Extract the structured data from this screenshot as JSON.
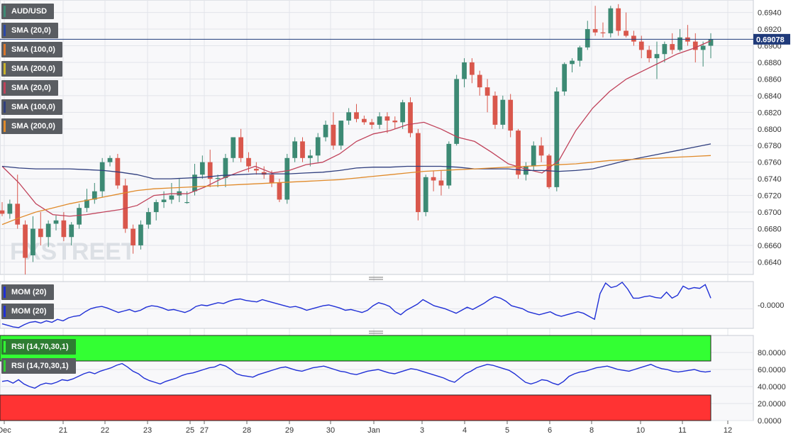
{
  "chart_data": {
    "type": "candlestick",
    "symbol": "AUD/USD",
    "watermark": "FXSTREET",
    "last_price": "0.69078",
    "colors": {
      "up": "#3d8a74",
      "down": "#d9574c",
      "background": "#f8f8fa",
      "grid": "#e2e4ea"
    },
    "price_axis": {
      "ylim": [
        0.6625,
        0.6955
      ],
      "ticks": [
        "0.6940",
        "0.6920",
        "0.6900",
        "0.6880",
        "0.6860",
        "0.6840",
        "0.6820",
        "0.6800",
        "0.6780",
        "0.6760",
        "0.6740",
        "0.6720",
        "0.6700",
        "0.6680",
        "0.6660",
        "0.6640"
      ]
    },
    "x_labels": [
      "Dec",
      "21",
      "22",
      "23",
      "25",
      "27",
      "28",
      "29",
      "30",
      "Jan",
      "3",
      "4",
      "5",
      "6",
      "8",
      "10",
      "11",
      "12"
    ],
    "legends": [
      {
        "label": "AUD/USD",
        "color": "#3d8a74"
      },
      {
        "label": "SMA (20,0)",
        "color": "#2a47a8"
      },
      {
        "label": "SMA (100,0)",
        "color": "#d9762b"
      },
      {
        "label": "SMA (200,0)",
        "color": "#c9b22a"
      },
      {
        "label": "SMA (20,0)",
        "color": "#c0425a"
      },
      {
        "label": "SMA (100,0)",
        "color": "#2f3e7e"
      },
      {
        "label": "SMA (200,0)",
        "color": "#e08a2a"
      }
    ],
    "series": [
      {
        "name": "SMA (20,0)",
        "color": "#c0425a",
        "points": [
          [
            0.6755
          ],
          [
            0.6735
          ],
          [
            0.671
          ],
          [
            0.6697
          ],
          [
            0.6695
          ],
          [
            0.6697
          ],
          [
            0.67
          ],
          [
            0.6703
          ],
          [
            0.6708
          ],
          [
            0.672
          ],
          [
            0.6722
          ],
          [
            0.6722
          ],
          [
            0.673
          ],
          [
            0.674
          ],
          [
            0.6748
          ],
          [
            0.6755
          ],
          [
            0.6747
          ],
          [
            0.675
          ],
          [
            0.6757
          ],
          [
            0.676
          ],
          [
            0.677
          ],
          [
            0.6785
          ],
          [
            0.6794
          ],
          [
            0.6798
          ],
          [
            0.6805
          ],
          [
            0.6808
          ],
          [
            0.68
          ],
          [
            0.679
          ],
          [
            0.6785
          ],
          [
            0.6772
          ],
          [
            0.6758
          ],
          [
            0.6752
          ],
          [
            0.6747
          ],
          [
            0.6762
          ],
          [
            0.6798
          ],
          [
            0.6825
          ],
          [
            0.6845
          ],
          [
            0.686
          ],
          [
            0.687
          ],
          [
            0.688
          ],
          [
            0.689
          ],
          [
            0.6897
          ],
          [
            0.6906
          ]
        ]
      },
      {
        "name": "SMA (100,0)",
        "color": "#2f3e7e",
        "points": [
          [
            0.6755
          ],
          [
            0.6753
          ],
          [
            0.6752
          ],
          [
            0.6752
          ],
          [
            0.6752
          ],
          [
            0.6751
          ],
          [
            0.675
          ],
          [
            0.6748
          ],
          [
            0.6745
          ],
          [
            0.674
          ],
          [
            0.674
          ],
          [
            0.6741
          ],
          [
            0.6742
          ],
          [
            0.6744
          ],
          [
            0.6745
          ],
          [
            0.6746
          ],
          [
            0.6746
          ],
          [
            0.6746
          ],
          [
            0.6747
          ],
          [
            0.6748
          ],
          [
            0.675
          ],
          [
            0.6753
          ],
          [
            0.6754
          ],
          [
            0.6754
          ],
          [
            0.6755
          ],
          [
            0.6755
          ],
          [
            0.6755
          ],
          [
            0.6754
          ],
          [
            0.6752
          ],
          [
            0.6752
          ],
          [
            0.6752
          ],
          [
            0.675
          ],
          [
            0.675
          ],
          [
            0.6749
          ],
          [
            0.675
          ],
          [
            0.6752
          ],
          [
            0.6757
          ],
          [
            0.6762
          ],
          [
            0.6766
          ],
          [
            0.677
          ],
          [
            0.6774
          ],
          [
            0.6778
          ],
          [
            0.6782
          ]
        ]
      },
      {
        "name": "SMA (200,0)",
        "color": "#e08a2a",
        "points": [
          [
            0.6685
          ],
          [
            0.6693
          ],
          [
            0.67
          ],
          [
            0.6705
          ],
          [
            0.671
          ],
          [
            0.6714
          ],
          [
            0.6718
          ],
          [
            0.6722
          ],
          [
            0.6726
          ],
          [
            0.6728
          ],
          [
            0.6729
          ],
          [
            0.673
          ],
          [
            0.6731
          ],
          [
            0.6732
          ],
          [
            0.6733
          ],
          [
            0.6734
          ],
          [
            0.6735
          ],
          [
            0.6736
          ],
          [
            0.6737
          ],
          [
            0.6738
          ],
          [
            0.6739
          ],
          [
            0.6741
          ],
          [
            0.6743
          ],
          [
            0.6745
          ],
          [
            0.6747
          ],
          [
            0.6749
          ],
          [
            0.675
          ],
          [
            0.6751
          ],
          [
            0.6752
          ],
          [
            0.6753
          ],
          [
            0.6754
          ],
          [
            0.6755
          ],
          [
            0.6756
          ],
          [
            0.6757
          ],
          [
            0.6758
          ],
          [
            0.676
          ],
          [
            0.6762
          ],
          [
            0.6763
          ],
          [
            0.6764
          ],
          [
            0.6765
          ],
          [
            0.6766
          ],
          [
            0.6767
          ],
          [
            0.6768
          ]
        ]
      }
    ],
    "candles": [
      [
        0.6702,
        0.6712,
        0.6695,
        0.6698
      ],
      [
        0.6698,
        0.6715,
        0.6692,
        0.671
      ],
      [
        0.671,
        0.6745,
        0.668,
        0.6685
      ],
      [
        0.6685,
        0.669,
        0.6625,
        0.6645
      ],
      [
        0.6648,
        0.6695,
        0.664,
        0.668
      ],
      [
        0.668,
        0.67,
        0.666,
        0.667
      ],
      [
        0.667,
        0.669,
        0.6658,
        0.6686
      ],
      [
        0.6686,
        0.6696,
        0.6678,
        0.669
      ],
      [
        0.669,
        0.67,
        0.6665,
        0.667
      ],
      [
        0.667,
        0.6688,
        0.666,
        0.6685
      ],
      [
        0.6685,
        0.671,
        0.668,
        0.6705
      ],
      [
        0.6705,
        0.6728,
        0.67,
        0.6715
      ],
      [
        0.6715,
        0.6735,
        0.671,
        0.6725
      ],
      [
        0.6725,
        0.6765,
        0.6718,
        0.676
      ],
      [
        0.676,
        0.6768,
        0.6755,
        0.6765
      ],
      [
        0.6765,
        0.677,
        0.6728,
        0.6732
      ],
      [
        0.6732,
        0.674,
        0.6675,
        0.668
      ],
      [
        0.668,
        0.6685,
        0.665,
        0.666
      ],
      [
        0.666,
        0.669,
        0.6655,
        0.6685
      ],
      [
        0.6685,
        0.6705,
        0.668,
        0.67
      ],
      [
        0.67,
        0.6715,
        0.669,
        0.6712
      ],
      [
        0.6712,
        0.6725,
        0.6705,
        0.6715
      ],
      [
        0.6715,
        0.6735,
        0.671,
        0.672
      ],
      [
        0.672,
        0.674,
        0.6712,
        0.6725
      ],
      [
        0.6712,
        0.6725,
        0.671,
        0.6712
      ],
      [
        0.6725,
        0.6758,
        0.672,
        0.6745
      ],
      [
        0.6745,
        0.6768,
        0.674,
        0.676
      ],
      [
        0.676,
        0.6775,
        0.673,
        0.674
      ],
      [
        0.674,
        0.6745,
        0.673,
        0.6741
      ],
      [
        0.6741,
        0.677,
        0.673,
        0.6765
      ],
      [
        0.6765,
        0.679,
        0.676,
        0.679
      ],
      [
        0.679,
        0.68,
        0.676,
        0.6765
      ],
      [
        0.6765,
        0.6772,
        0.6748,
        0.6755
      ],
      [
        0.6752,
        0.676,
        0.6745,
        0.675
      ],
      [
        0.6748,
        0.6755,
        0.674,
        0.6745
      ],
      [
        0.6745,
        0.675,
        0.673,
        0.6735
      ],
      [
        0.6735,
        0.674,
        0.6712,
        0.6715
      ],
      [
        0.6715,
        0.677,
        0.671,
        0.6765
      ],
      [
        0.6765,
        0.679,
        0.676,
        0.6785
      ],
      [
        0.6785,
        0.679,
        0.676,
        0.6765
      ],
      [
        0.6765,
        0.6775,
        0.6755,
        0.6768
      ],
      [
        0.6768,
        0.6795,
        0.676,
        0.679
      ],
      [
        0.679,
        0.681,
        0.6785,
        0.6805
      ],
      [
        0.6805,
        0.682,
        0.6775,
        0.678
      ],
      [
        0.678,
        0.681,
        0.6775,
        0.681
      ],
      [
        0.681,
        0.6825,
        0.6805,
        0.682
      ],
      [
        0.682,
        0.683,
        0.6808,
        0.6812
      ],
      [
        0.6812,
        0.6816,
        0.6805,
        0.6808
      ],
      [
        0.6808,
        0.6812,
        0.68,
        0.6805
      ],
      [
        0.6805,
        0.682,
        0.68,
        0.6815
      ],
      [
        0.6815,
        0.682,
        0.6795,
        0.681
      ],
      [
        0.681,
        0.6815,
        0.68,
        0.6808
      ],
      [
        0.6808,
        0.6835,
        0.68,
        0.6832
      ],
      [
        0.6832,
        0.6838,
        0.679,
        0.6795
      ],
      [
        0.6795,
        0.68,
        0.669,
        0.67
      ],
      [
        0.67,
        0.6745,
        0.6695,
        0.6742
      ],
      [
        0.6742,
        0.675,
        0.6725,
        0.6738
      ],
      [
        0.6738,
        0.675,
        0.672,
        0.6732
      ],
      [
        0.6732,
        0.6785,
        0.6728,
        0.6782
      ],
      [
        0.6782,
        0.6865,
        0.678,
        0.686
      ],
      [
        0.686,
        0.6885,
        0.685,
        0.688
      ],
      [
        0.688,
        0.6885,
        0.6855,
        0.6865
      ],
      [
        0.6865,
        0.687,
        0.684,
        0.685
      ],
      [
        0.685,
        0.686,
        0.682,
        0.684
      ],
      [
        0.684,
        0.6845,
        0.68,
        0.6805
      ],
      [
        0.6805,
        0.684,
        0.68,
        0.6835
      ],
      [
        0.6835,
        0.6842,
        0.679,
        0.6798
      ],
      [
        0.6798,
        0.68,
        0.674,
        0.6745
      ],
      [
        0.6745,
        0.676,
        0.6738,
        0.6755
      ],
      [
        0.6755,
        0.6785,
        0.675,
        0.678
      ],
      [
        0.678,
        0.679,
        0.676,
        0.6768
      ],
      [
        0.6768,
        0.677,
        0.6728,
        0.673
      ],
      [
        0.673,
        0.685,
        0.6725,
        0.6845
      ],
      [
        0.6845,
        0.688,
        0.684,
        0.6878
      ],
      [
        0.6878,
        0.6885,
        0.6868,
        0.6882
      ],
      [
        0.6882,
        0.69,
        0.6875,
        0.6898
      ],
      [
        0.6898,
        0.693,
        0.6895,
        0.692
      ],
      [
        0.692,
        0.6948,
        0.6912,
        0.6916
      ],
      [
        0.6916,
        0.6928,
        0.691,
        0.6915
      ],
      [
        0.6915,
        0.6948,
        0.691,
        0.6945
      ],
      [
        0.6945,
        0.695,
        0.6912,
        0.6918
      ],
      [
        0.6918,
        0.694,
        0.691,
        0.6912
      ],
      [
        0.6912,
        0.6918,
        0.69,
        0.6905
      ],
      [
        0.6905,
        0.6912,
        0.6885,
        0.6895
      ],
      [
        0.6895,
        0.69,
        0.688,
        0.6885
      ],
      [
        0.6885,
        0.6905,
        0.686,
        0.689
      ],
      [
        0.689,
        0.6905,
        0.688,
        0.6902
      ],
      [
        0.6902,
        0.6915,
        0.689,
        0.6895
      ],
      [
        0.6895,
        0.692,
        0.6893,
        0.691
      ],
      [
        0.691,
        0.6925,
        0.69,
        0.6905
      ],
      [
        0.6905,
        0.6915,
        0.688,
        0.6895
      ],
      [
        0.6895,
        0.6905,
        0.6875,
        0.69
      ],
      [
        0.69,
        0.6915,
        0.6885,
        0.6908
      ]
    ],
    "mom_panel": {
      "label": "MOM (20)",
      "color": "#1f2fd6",
      "tick": "-0.0000",
      "values": [
        -20,
        -22,
        -24,
        -25,
        -21,
        -18,
        -17,
        -19,
        -16,
        -18,
        -14,
        -16,
        -12,
        -10,
        -9,
        -4,
        0,
        2,
        3,
        1,
        -2,
        -5,
        -3,
        -1,
        -4,
        -2,
        2,
        4,
        3,
        1,
        -2,
        -1,
        -3,
        -5,
        -2,
        3,
        5,
        4,
        6,
        8,
        7,
        10,
        12,
        13,
        11,
        10,
        9,
        12,
        10,
        8,
        6,
        4,
        2,
        3,
        1,
        -2,
        0,
        2,
        4,
        5,
        3,
        1,
        -2,
        -1,
        -3,
        -5,
        -2,
        4,
        8,
        6,
        3,
        -4,
        -8,
        -2,
        2,
        6,
        12,
        8,
        4,
        2,
        0,
        -3,
        -6,
        -2,
        2,
        -1,
        3,
        7,
        12,
        16,
        14,
        10,
        4,
        2,
        0,
        -4,
        -6,
        -8,
        -6,
        -4,
        -8,
        -10,
        -8,
        -6,
        -4,
        -6,
        -10,
        -14,
        20,
        34,
        28,
        30,
        35,
        26,
        14,
        14,
        16,
        17,
        15,
        14,
        22,
        14,
        18,
        30,
        26,
        28,
        27,
        32,
        14
      ]
    },
    "rsi_panel": {
      "label": "RSI (14,70,30,1)",
      "color": "#1f2fd6",
      "overbought_color": "#33ff33",
      "oversold_color": "#ff3333",
      "levels": [
        70,
        30
      ],
      "ticks": [
        "80.0000",
        "60.0000",
        "40.0000",
        "20.0000",
        "0.0000"
      ],
      "values": [
        46,
        47,
        44,
        48,
        43,
        40,
        38,
        42,
        44,
        43,
        45,
        48,
        47,
        49,
        52,
        55,
        57,
        55,
        58,
        60,
        62,
        65,
        67,
        63,
        58,
        55,
        50,
        47,
        45,
        43,
        46,
        48,
        50,
        53,
        55,
        56,
        58,
        60,
        62,
        63,
        66,
        64,
        60,
        55,
        53,
        52,
        51,
        54,
        56,
        58,
        60,
        62,
        63,
        61,
        59,
        58,
        60,
        62,
        63,
        64,
        62,
        60,
        58,
        57,
        55,
        54,
        56,
        58,
        59,
        60,
        58,
        56,
        55,
        57,
        59,
        61,
        60,
        58,
        56,
        54,
        52,
        50,
        47,
        45,
        50,
        55,
        58,
        62,
        64,
        66,
        65,
        63,
        61,
        59,
        55,
        50,
        45,
        43,
        45,
        48,
        47,
        44,
        42,
        46,
        52,
        55,
        57,
        58,
        60,
        62,
        63,
        64,
        62,
        60,
        59,
        58,
        60,
        62,
        64,
        66,
        63,
        61,
        60,
        58,
        57,
        58,
        59,
        60,
        58,
        57,
        58
      ]
    }
  }
}
